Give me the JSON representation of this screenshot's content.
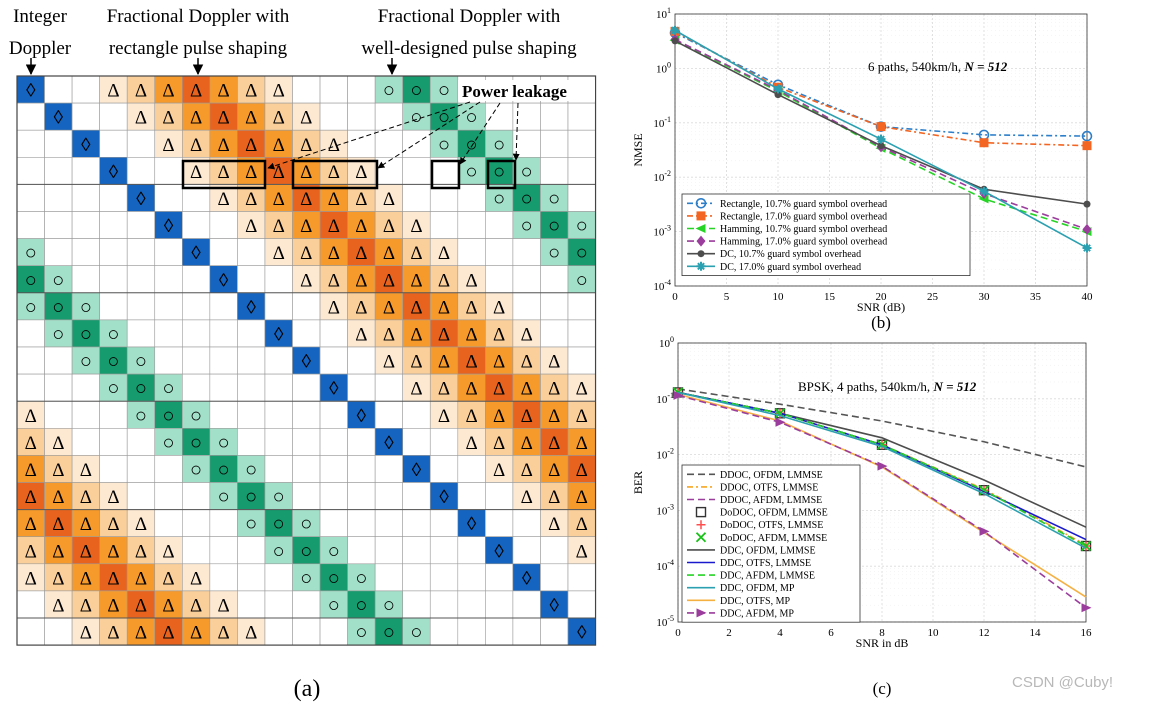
{
  "panel_a": {
    "caption": "(a)",
    "headers": {
      "integer_line1": "Integer",
      "integer_line2": "Doppler",
      "rect_line1": "Fractional Doppler with",
      "rect_line2": "rectangle pulse shaping",
      "well_line1": "Fractional Doppler with",
      "well_line2": "well-designed pulse shaping"
    },
    "power_leakage": "Power leakage",
    "symbols": {
      "diamond": "◊",
      "triangle": "Δ",
      "circle": "○"
    },
    "colors": {
      "diamond": "#1565c0",
      "tri_levels": [
        "#fde9d2",
        "#fbcf9a",
        "#f79a2c",
        "#e8641e"
      ],
      "circ_levels": [
        "#a3e0c9",
        "#159b6d"
      ]
    }
  },
  "watermark": "CSDN @Cuby!",
  "chart_data": [
    {
      "type": "line",
      "id": "b",
      "caption": "(b)",
      "annotation_main": "6 paths, 540km/h, ",
      "annotation_n": "N = 512",
      "xlabel": "SNR (dB)",
      "ylabel": "NMSE",
      "yscale": "log",
      "xlim": [
        0,
        40
      ],
      "ylim_exp": [
        -4,
        1
      ],
      "xticks": [
        "0",
        "5",
        "10",
        "15",
        "20",
        "25",
        "30",
        "35",
        "40"
      ],
      "yticks": [
        "10-4",
        "10-3",
        "10-2",
        "10-1",
        "100",
        "101"
      ],
      "grid": true,
      "legend_position": "lower-left",
      "series": [
        {
          "name": "Rectangle, 10.7% guard symbol overhead",
          "color": "#2e7fc9",
          "dash": "6,3,2,3",
          "marker": "circle",
          "x": [
            0,
            10,
            20,
            30,
            40
          ],
          "y": [
            4.5,
            0.5,
            0.085,
            0.06,
            0.057
          ]
        },
        {
          "name": "Rectangle, 17.0% guard symbol overhead",
          "color": "#f26522",
          "dash": "6,3,2,3",
          "marker": "square",
          "x": [
            0,
            10,
            20,
            30,
            40
          ],
          "y": [
            4.8,
            0.45,
            0.085,
            0.043,
            0.038
          ]
        },
        {
          "name": "Hamming, 10.7% guard symbol overhead",
          "color": "#26d426",
          "dash": "7,4",
          "marker": "triangle-left",
          "x": [
            0,
            10,
            20,
            30,
            40
          ],
          "y": [
            3.3,
            0.38,
            0.034,
            0.004,
            0.001
          ]
        },
        {
          "name": "Hamming, 17.0% guard symbol overhead",
          "color": "#9b3d9c",
          "dash": "7,4",
          "marker": "diamond",
          "x": [
            0,
            10,
            20,
            30,
            40
          ],
          "y": [
            3.4,
            0.4,
            0.036,
            0.005,
            0.0011
          ]
        },
        {
          "name": "DC, 10.7% guard symbol overhead",
          "color": "#4d4d4d",
          "dash": "",
          "marker": "dot",
          "x": [
            0,
            10,
            20,
            30,
            40
          ],
          "y": [
            3.2,
            0.33,
            0.038,
            0.006,
            0.0032
          ]
        },
        {
          "name": "DC, 17.0% guard symbol overhead",
          "color": "#2aa0b0",
          "dash": "",
          "marker": "star",
          "x": [
            0,
            10,
            20,
            30,
            40
          ],
          "y": [
            5.0,
            0.42,
            0.05,
            0.0055,
            0.0005
          ]
        }
      ]
    },
    {
      "type": "line",
      "id": "c",
      "caption": "(c)",
      "annotation_main": "BPSK, 4 paths, 540km/h, ",
      "annotation_n": "N = 512",
      "xlabel": "SNR in dB",
      "ylabel": "BER",
      "yscale": "log",
      "xlim": [
        0,
        16
      ],
      "ylim_exp": [
        -5,
        0
      ],
      "xticks": [
        "0",
        "2",
        "4",
        "6",
        "8",
        "10",
        "12",
        "14",
        "16"
      ],
      "yticks": [
        "10-5",
        "10-4",
        "10-3",
        "10-2",
        "10-1",
        "100"
      ],
      "grid": true,
      "legend_position": "lower-left",
      "series": [
        {
          "name": "DDOC, OFDM, LMMSE",
          "color": "#555555",
          "dash": "7,4",
          "marker": "none",
          "x": [
            0,
            4,
            8,
            12,
            16
          ],
          "y": [
            0.15,
            0.08,
            0.04,
            0.017,
            0.006
          ]
        },
        {
          "name": "DDOC, OTFS, LMMSE",
          "color": "#f5a623",
          "dash": "6,3,2,3",
          "marker": "none",
          "x": [
            0,
            4,
            8,
            12,
            16
          ],
          "y": [
            0.13,
            0.055,
            0.015,
            0.0024,
            0.00024
          ]
        },
        {
          "name": "DDOC, AFDM, LMMSE",
          "color": "#9b3d9c",
          "dash": "7,4",
          "marker": "none",
          "x": [
            0,
            4,
            8,
            12,
            16
          ],
          "y": [
            0.13,
            0.055,
            0.015,
            0.0023,
            0.00023
          ]
        },
        {
          "name": "DoDOC, OFDM, LMMSE",
          "color": "#333333",
          "dash": "none",
          "marker": "square-open",
          "x": [
            0,
            4,
            8,
            12,
            16
          ],
          "y": [
            0.13,
            0.055,
            0.015,
            0.0023,
            0.00023
          ]
        },
        {
          "name": "DoDOC, OTFS, LMMSE",
          "color": "#ff4d4d",
          "dash": "none",
          "marker": "plus",
          "x": [
            0,
            4,
            8,
            12,
            16
          ],
          "y": [
            0.13,
            0.055,
            0.015,
            0.0023,
            0.00023
          ]
        },
        {
          "name": "DoDOC, AFDM, LMMSE",
          "color": "#19c219",
          "dash": "none",
          "marker": "cross",
          "x": [
            0,
            4,
            8,
            12,
            16
          ],
          "y": [
            0.13,
            0.055,
            0.015,
            0.0023,
            0.00023
          ]
        },
        {
          "name": "DDC, OFDM, LMMSE",
          "color": "#4d4d4d",
          "dash": "",
          "marker": "none",
          "x": [
            0,
            4,
            8,
            12,
            16
          ],
          "y": [
            0.13,
            0.055,
            0.02,
            0.0035,
            0.0005
          ]
        },
        {
          "name": "DDC, OTFS, LMMSE",
          "color": "#1a1acc",
          "dash": "",
          "marker": "none",
          "x": [
            0,
            4,
            8,
            12,
            16
          ],
          "y": [
            0.13,
            0.055,
            0.015,
            0.0022,
            0.0003
          ]
        },
        {
          "name": "DDC, AFDM, LMMSE",
          "color": "#26d426",
          "dash": "7,4",
          "marker": "none",
          "x": [
            0,
            4,
            8,
            12,
            16
          ],
          "y": [
            0.13,
            0.055,
            0.015,
            0.0023,
            0.00023
          ]
        },
        {
          "name": "DDC, OFDM, MP",
          "color": "#2aa0b0",
          "dash": "",
          "marker": "none",
          "x": [
            0,
            4,
            8,
            12,
            16
          ],
          "y": [
            0.13,
            0.05,
            0.014,
            0.002,
            0.00021
          ]
        },
        {
          "name": "DDC, OTFS, MP",
          "color": "#f5b042",
          "dash": "",
          "marker": "none",
          "x": [
            0,
            4,
            8,
            12,
            16
          ],
          "y": [
            0.12,
            0.04,
            0.006,
            0.0004,
            2.8e-05
          ]
        },
        {
          "name": "DDC, AFDM, MP",
          "color": "#9b3d9c",
          "dash": "7,4",
          "marker": "triangle-right",
          "x": [
            0,
            4,
            8,
            12,
            16
          ],
          "y": [
            0.115,
            0.038,
            0.0062,
            0.00042,
            1.8e-05
          ]
        }
      ]
    }
  ]
}
